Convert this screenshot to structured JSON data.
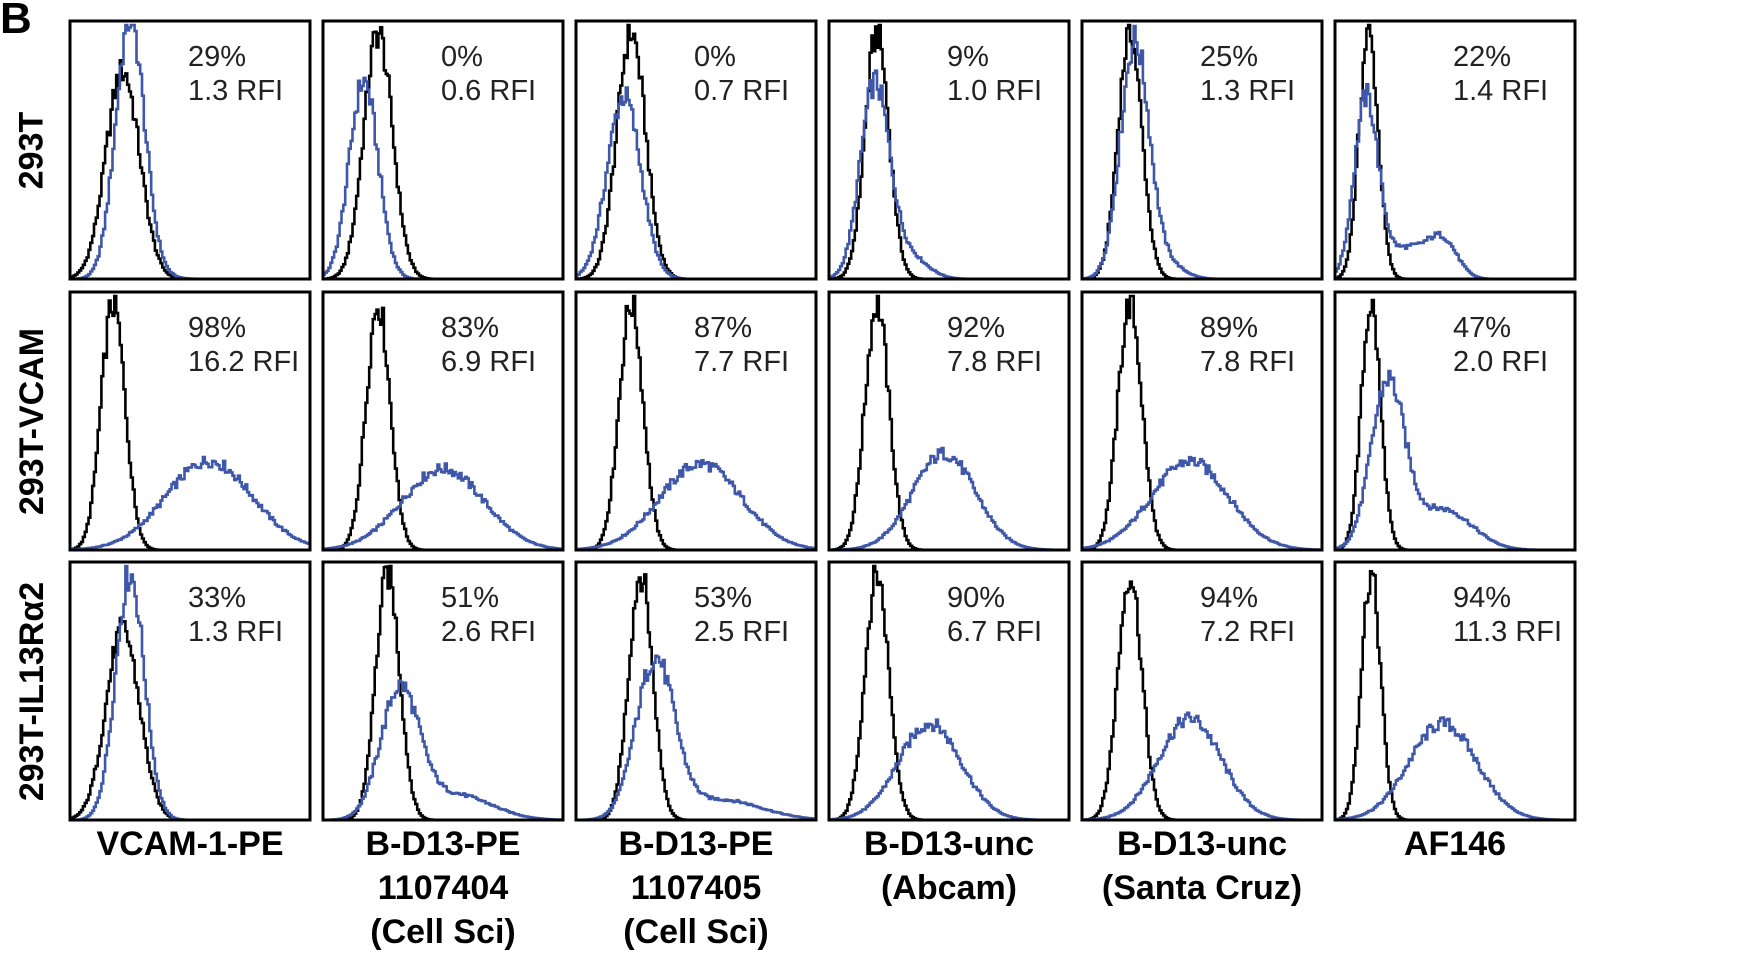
{
  "figure": {
    "panel_letter": "B",
    "colors": {
      "control": "#000000",
      "stained": "#3e57a8",
      "frame": "#000000"
    }
  },
  "chart_data": {
    "type": "histogram-grid",
    "title": "",
    "xlabel": "",
    "ylabel": "",
    "rows": [
      "293T",
      "293T-VCAM",
      "293T-IL13Rα2"
    ],
    "columns": [
      {
        "lines": [
          "VCAM-1-PE"
        ]
      },
      {
        "lines": [
          "B-D13-PE",
          "1107404",
          "(Cell Sci)"
        ]
      },
      {
        "lines": [
          "B-D13-PE",
          "1107405",
          "(Cell Sci)"
        ]
      },
      {
        "lines": [
          "B-D13-unc",
          "(Abcam)"
        ]
      },
      {
        "lines": [
          "B-D13-unc",
          "(Santa Cruz)"
        ]
      },
      {
        "lines": [
          "AF146"
        ]
      }
    ],
    "series": [
      {
        "key": "control",
        "color": "#000000"
      },
      {
        "key": "stained",
        "color": "#3e57a8"
      }
    ],
    "cells": [
      [
        {
          "pct": "29%",
          "rfi": "1.3 RFI",
          "ctl": [
            [
              0.22,
              0.07,
              0.82
            ]
          ],
          "stn": [
            [
              0.25,
              0.06,
              1.0
            ],
            [
              0.3,
              0.08,
              0.03
            ]
          ]
        },
        {
          "pct": "0%",
          "rfi": "0.6 RFI",
          "ctl": [
            [
              0.23,
              0.06,
              0.97
            ]
          ],
          "stn": [
            [
              0.17,
              0.06,
              0.78
            ]
          ]
        },
        {
          "pct": "0%",
          "rfi": "0.7 RFI",
          "ctl": [
            [
              0.23,
              0.06,
              0.97
            ]
          ],
          "stn": [
            [
              0.2,
              0.07,
              0.72
            ]
          ]
        },
        {
          "pct": "9%",
          "rfi": "1.0 RFI",
          "ctl": [
            [
              0.2,
              0.05,
              0.97
            ]
          ],
          "stn": [
            [
              0.19,
              0.06,
              0.75
            ],
            [
              0.32,
              0.08,
              0.1
            ]
          ]
        },
        {
          "pct": "25%",
          "rfi": "1.3 RFI",
          "ctl": [
            [
              0.2,
              0.05,
              0.97
            ]
          ],
          "stn": [
            [
              0.22,
              0.06,
              0.93
            ],
            [
              0.35,
              0.07,
              0.06
            ]
          ]
        },
        {
          "pct": "22%",
          "rfi": "1.4 RFI",
          "ctl": [
            [
              0.14,
              0.04,
              0.97
            ]
          ],
          "stn": [
            [
              0.13,
              0.05,
              0.7
            ],
            [
              0.3,
              0.09,
              0.12
            ],
            [
              0.45,
              0.06,
              0.14
            ]
          ]
        }
      ],
      [
        {
          "pct": "98%",
          "rfi": "16.2 RFI",
          "ctl": [
            [
              0.18,
              0.05,
              0.97
            ]
          ],
          "stn": [
            [
              0.58,
              0.18,
              0.35
            ]
          ]
        },
        {
          "pct": "83%",
          "rfi": "6.9 RFI",
          "ctl": [
            [
              0.23,
              0.05,
              0.97
            ]
          ],
          "stn": [
            [
              0.5,
              0.17,
              0.32
            ]
          ]
        },
        {
          "pct": "87%",
          "rfi": "7.7 RFI",
          "ctl": [
            [
              0.23,
              0.05,
              0.97
            ]
          ],
          "stn": [
            [
              0.52,
              0.17,
              0.34
            ]
          ]
        },
        {
          "pct": "92%",
          "rfi": "7.8 RFI",
          "ctl": [
            [
              0.2,
              0.05,
              0.97
            ]
          ],
          "stn": [
            [
              0.48,
              0.13,
              0.38
            ]
          ]
        },
        {
          "pct": "89%",
          "rfi": "7.8 RFI",
          "ctl": [
            [
              0.2,
              0.05,
              0.97
            ]
          ],
          "stn": [
            [
              0.45,
              0.16,
              0.35
            ]
          ]
        },
        {
          "pct": "47%",
          "rfi": "2.0 RFI",
          "ctl": [
            [
              0.15,
              0.04,
              0.97
            ]
          ],
          "stn": [
            [
              0.22,
              0.07,
              0.65
            ],
            [
              0.45,
              0.12,
              0.16
            ]
          ]
        }
      ],
      [
        {
          "pct": "33%",
          "rfi": "1.3 RFI",
          "ctl": [
            [
              0.22,
              0.07,
              0.75
            ]
          ],
          "stn": [
            [
              0.25,
              0.06,
              0.97
            ]
          ]
        },
        {
          "pct": "51%",
          "rfi": "2.6 RFI",
          "ctl": [
            [
              0.27,
              0.05,
              0.97
            ]
          ],
          "stn": [
            [
              0.32,
              0.08,
              0.5
            ],
            [
              0.55,
              0.15,
              0.1
            ]
          ]
        },
        {
          "pct": "53%",
          "rfi": "2.5 RFI",
          "ctl": [
            [
              0.27,
              0.05,
              0.97
            ]
          ],
          "stn": [
            [
              0.33,
              0.08,
              0.62
            ],
            [
              0.6,
              0.17,
              0.08
            ]
          ]
        },
        {
          "pct": "90%",
          "rfi": "6.7 RFI",
          "ctl": [
            [
              0.2,
              0.05,
              0.97
            ]
          ],
          "stn": [
            [
              0.42,
              0.13,
              0.38
            ]
          ]
        },
        {
          "pct": "94%",
          "rfi": "7.2 RFI",
          "ctl": [
            [
              0.2,
              0.05,
              0.97
            ]
          ],
          "stn": [
            [
              0.45,
              0.13,
              0.4
            ]
          ]
        },
        {
          "pct": "94%",
          "rfi": "11.3 RFI",
          "ctl": [
            [
              0.15,
              0.04,
              0.97
            ]
          ],
          "stn": [
            [
              0.45,
              0.14,
              0.38
            ]
          ]
        }
      ]
    ]
  }
}
